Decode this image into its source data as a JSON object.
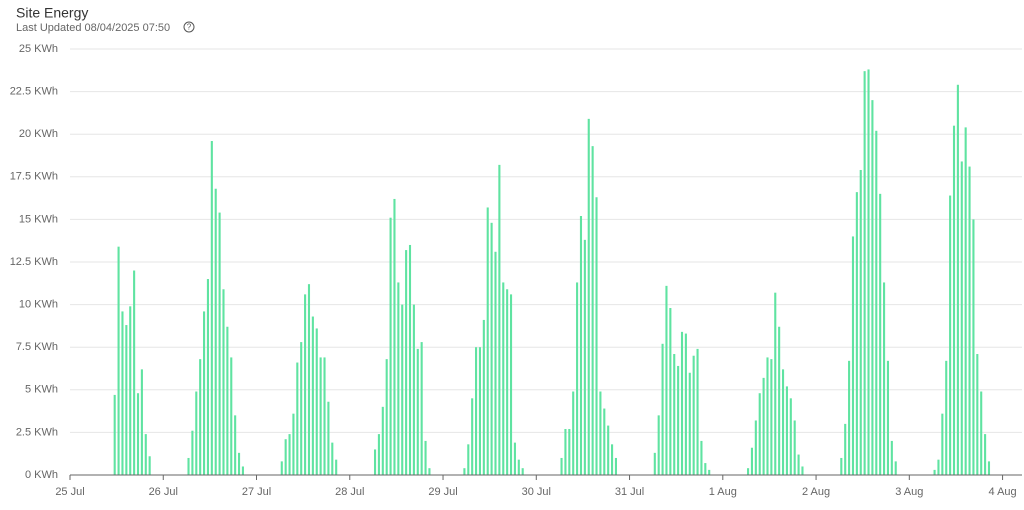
{
  "chart_data": {
    "type": "bar",
    "title": "Site Energy",
    "subtitle": "Last Updated 08/04/2025 07:50",
    "categories": [
      "25 Jul",
      null,
      null,
      null,
      null,
      null,
      null,
      null,
      null,
      null,
      null,
      null,
      null,
      null,
      null,
      null,
      null,
      null,
      null,
      null,
      null,
      null,
      null,
      null,
      "26 Jul",
      null,
      null,
      null,
      null,
      null,
      null,
      null,
      null,
      null,
      null,
      null,
      null,
      null,
      null,
      null,
      null,
      null,
      null,
      null,
      null,
      null,
      null,
      null,
      "27 Jul",
      null,
      null,
      null,
      null,
      null,
      null,
      null,
      null,
      null,
      null,
      null,
      null,
      null,
      null,
      null,
      null,
      null,
      null,
      null,
      null,
      null,
      null,
      null,
      "28 Jul",
      null,
      null,
      null,
      null,
      null,
      null,
      null,
      null,
      null,
      null,
      null,
      null,
      null,
      null,
      null,
      null,
      null,
      null,
      null,
      null,
      null,
      null,
      null,
      "29 Jul",
      null,
      null,
      null,
      null,
      null,
      null,
      null,
      null,
      null,
      null,
      null,
      null,
      null,
      null,
      null,
      null,
      null,
      null,
      null,
      null,
      null,
      null,
      null,
      "30 Jul",
      null,
      null,
      null,
      null,
      null,
      null,
      null,
      null,
      null,
      null,
      null,
      null,
      null,
      null,
      null,
      null,
      null,
      null,
      null,
      null,
      null,
      null,
      null,
      "31 Jul",
      null,
      null,
      null,
      null,
      null,
      null,
      null,
      null,
      null,
      null,
      null,
      null,
      null,
      null,
      null,
      null,
      null,
      null,
      null,
      null,
      null,
      null,
      null,
      "1 Aug",
      null,
      null,
      null,
      null,
      null,
      null,
      null,
      null,
      null,
      null,
      null,
      null,
      null,
      null,
      null,
      null,
      null,
      null,
      null,
      null,
      null,
      null,
      null,
      "2 Aug",
      null,
      null,
      null,
      null,
      null,
      null,
      null,
      null,
      null,
      null,
      null,
      null,
      null,
      null,
      null,
      null,
      null,
      null,
      null,
      null,
      null,
      null,
      null,
      "3 Aug",
      null,
      null,
      null,
      null,
      null,
      null,
      null,
      null,
      null,
      null,
      null,
      null,
      null,
      null,
      null,
      null,
      null,
      null,
      null,
      null,
      null,
      null,
      null,
      "4 Aug",
      null,
      null,
      null,
      null
    ],
    "values": [
      null,
      null,
      null,
      null,
      null,
      null,
      null,
      null,
      null,
      null,
      null,
      4.7,
      13.4,
      9.6,
      8.8,
      9.9,
      12.0,
      4.8,
      6.2,
      2.4,
      1.1,
      null,
      null,
      null,
      null,
      null,
      null,
      null,
      null,
      null,
      1.0,
      2.6,
      4.9,
      6.8,
      9.6,
      11.5,
      19.6,
      16.8,
      15.4,
      10.9,
      8.7,
      6.9,
      3.5,
      1.3,
      0.5,
      null,
      null,
      null,
      null,
      null,
      null,
      null,
      null,
      null,
      0.8,
      2.1,
      2.4,
      3.6,
      6.6,
      7.8,
      10.6,
      11.2,
      9.3,
      8.6,
      6.9,
      6.9,
      4.3,
      1.9,
      0.9,
      null,
      null,
      null,
      null,
      null,
      null,
      null,
      null,
      null,
      1.5,
      2.4,
      4.0,
      6.8,
      15.1,
      16.2,
      11.3,
      10.0,
      13.2,
      13.5,
      10.0,
      7.4,
      7.8,
      2.0,
      0.4,
      null,
      null,
      null,
      null,
      null,
      null,
      null,
      null,
      0.4,
      1.8,
      4.5,
      7.5,
      7.5,
      9.1,
      15.7,
      14.8,
      13.1,
      18.2,
      11.3,
      10.9,
      10.6,
      1.9,
      0.9,
      0.4,
      null,
      null,
      null,
      null,
      null,
      null,
      null,
      null,
      null,
      1.0,
      2.7,
      2.7,
      4.9,
      11.3,
      15.2,
      13.8,
      20.9,
      19.3,
      16.3,
      4.9,
      3.9,
      2.9,
      1.8,
      1.0,
      null,
      null,
      null,
      null,
      null,
      null,
      null,
      null,
      null,
      1.3,
      3.5,
      7.7,
      11.1,
      9.8,
      7.1,
      6.4,
      8.4,
      8.3,
      6.0,
      7.0,
      7.4,
      2.0,
      0.7,
      0.3,
      null,
      null,
      null,
      null,
      null,
      null,
      null,
      null,
      null,
      0.4,
      1.6,
      3.2,
      4.8,
      5.7,
      6.9,
      6.8,
      10.7,
      8.7,
      6.2,
      5.2,
      4.5,
      3.2,
      1.2,
      0.5,
      null,
      null,
      null,
      null,
      null,
      null,
      null,
      null,
      null,
      1.0,
      3.0,
      6.7,
      14.0,
      16.6,
      17.9,
      23.7,
      23.8,
      22.0,
      20.2,
      16.5,
      11.3,
      6.7,
      2.0,
      0.8,
      null,
      null,
      null,
      null,
      null,
      null,
      null,
      null,
      null,
      0.3,
      0.9,
      3.6,
      6.7,
      16.4,
      20.5,
      22.9,
      18.4,
      20.4,
      18.1,
      15.0,
      7.1,
      4.9,
      2.4,
      0.8,
      null,
      null,
      null,
      null,
      null,
      null,
      null,
      null
    ],
    "color": "#5fe3a1",
    "ylim": [
      0,
      25
    ],
    "yticks": [
      {
        "value": 0,
        "label": "0 KWh"
      },
      {
        "value": 2.5,
        "label": "2.5 KWh"
      },
      {
        "value": 5,
        "label": "5 KWh"
      },
      {
        "value": 7.5,
        "label": "7.5 KWh"
      },
      {
        "value": 10,
        "label": "10 KWh"
      },
      {
        "value": 12.5,
        "label": "12.5 KWh"
      },
      {
        "value": 15,
        "label": "15 KWh"
      },
      {
        "value": 17.5,
        "label": "17.5 KWh"
      },
      {
        "value": 20,
        "label": "20 KWh"
      },
      {
        "value": 22.5,
        "label": "22.5 KWh"
      },
      {
        "value": 25,
        "label": "25 KWh"
      }
    ],
    "grid": true
  }
}
